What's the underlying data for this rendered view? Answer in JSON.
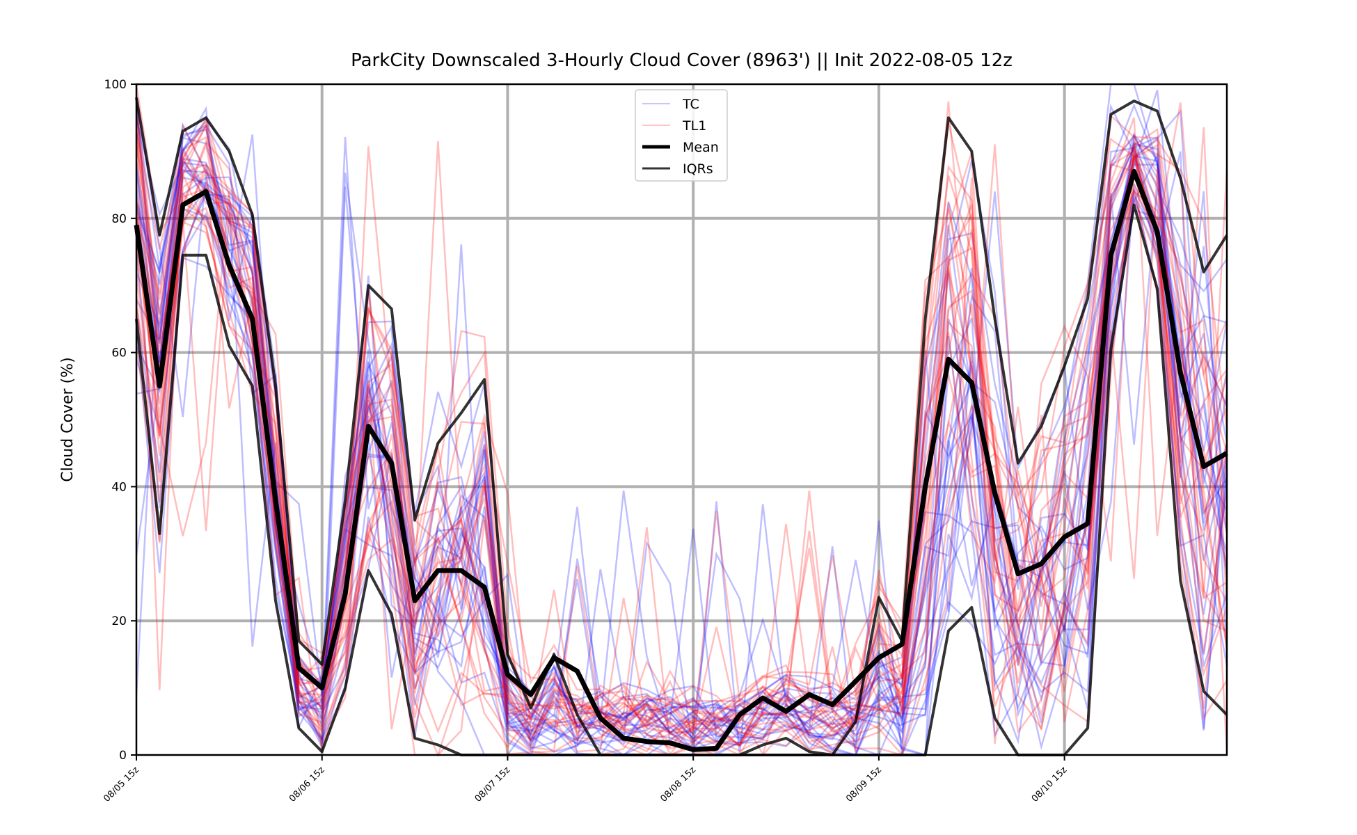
{
  "chart_data": {
    "type": "line",
    "title": "ParkCity Downscaled 3-Hourly Cloud Cover (8963') || Init 2022-08-05 12z",
    "xlabel": "",
    "ylabel": "Cloud Cover (%)",
    "ylim": [
      0,
      100
    ],
    "yticks": [
      "0",
      "20",
      "40",
      "60",
      "80",
      "100"
    ],
    "x_step_hours": 3,
    "x_count": 48,
    "xticks": [
      {
        "label": "08/05 15z",
        "index": 0
      },
      {
        "label": "08/06 15z",
        "index": 8
      },
      {
        "label": "08/07 15z",
        "index": 16
      },
      {
        "label": "08/08 15z",
        "index": 24
      },
      {
        "label": "08/09 15z",
        "index": 32
      },
      {
        "label": "08/10 15z",
        "index": 40
      }
    ],
    "grid": true,
    "legend": {
      "placement": "top-center",
      "entries": [
        {
          "label": "TC",
          "color": "#0000ff",
          "alpha": 0.3,
          "width": 1.5
        },
        {
          "label": "TL1",
          "color": "#ff0000",
          "alpha": 0.3,
          "width": 1.5
        },
        {
          "label": "Mean",
          "color": "#000000",
          "alpha": 1.0,
          "width": 5
        },
        {
          "label": "IQRs",
          "color": "#000000",
          "alpha": 0.8,
          "width": 3
        }
      ]
    },
    "ensemble_groups": [
      {
        "name": "TC",
        "color": "#0000ff",
        "members": 24
      },
      {
        "name": "TL1",
        "color": "#ff0000",
        "members": 24
      }
    ],
    "series": [
      {
        "name": "Mean",
        "values": [
          79,
          55,
          82,
          84,
          73,
          65,
          38,
          13,
          10,
          24,
          49,
          43.5,
          23,
          27.5,
          27.5,
          25,
          12,
          9,
          14.5,
          12.5,
          5.5,
          2.5,
          2,
          1.8,
          0.8,
          1,
          6,
          8.5,
          6.5,
          9,
          7.5,
          11,
          14.5,
          16.5,
          40,
          59,
          55.5,
          39,
          27,
          28.5,
          32.5,
          34.5,
          74.5,
          87,
          78,
          57,
          43,
          45
        ]
      },
      {
        "name": "IQR upper",
        "values": [
          98,
          77.5,
          93,
          95,
          90,
          80.5,
          55,
          17,
          13.5,
          38,
          70,
          66.5,
          35,
          46.5,
          51,
          56,
          15,
          7,
          15,
          6,
          0,
          0,
          0,
          0,
          0,
          0,
          0,
          0,
          0,
          0,
          0,
          5,
          23.5,
          17,
          65,
          95,
          90,
          65,
          43.5,
          49,
          58,
          68,
          95.5,
          97.5,
          96,
          86,
          72,
          77.5
        ]
      },
      {
        "name": "IQR lower",
        "values": [
          65,
          33,
          74.5,
          74.5,
          61,
          55,
          23,
          4,
          0.5,
          10,
          27.5,
          21,
          2.5,
          1.5,
          0,
          0,
          0,
          0,
          0,
          0,
          0,
          0,
          0,
          0,
          0,
          0,
          0,
          1.5,
          2.5,
          0.5,
          0,
          0,
          0,
          0,
          0,
          18.5,
          22,
          5.5,
          0,
          0,
          0,
          4,
          60.5,
          82,
          69.5,
          26,
          9.5,
          6
        ]
      }
    ]
  }
}
